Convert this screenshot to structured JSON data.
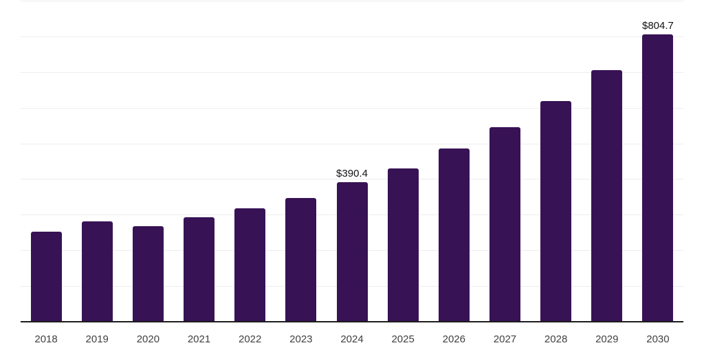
{
  "chart_data": {
    "type": "bar",
    "title": "",
    "xlabel": "",
    "ylabel": "",
    "categories": [
      "2018",
      "2019",
      "2020",
      "2021",
      "2022",
      "2023",
      "2024",
      "2025",
      "2026",
      "2027",
      "2028",
      "2029",
      "2030"
    ],
    "values": [
      252,
      281,
      268,
      292,
      318,
      347,
      390.4,
      430,
      485,
      546,
      619,
      705,
      804.7
    ],
    "data_labels": [
      "",
      "",
      "",
      "",
      "",
      "",
      "$390.4",
      "",
      "",
      "",
      "",
      "",
      "$804.7"
    ],
    "ylim": [
      0,
      900
    ],
    "gridline_step": 100,
    "grid": "horizontal-only",
    "legend": "none",
    "y_tick_labels_visible": false,
    "colors": {
      "bar": "#371254",
      "gridline": "#ededed",
      "axis_line": "#1c1c1c",
      "x_tick_label": "#404040",
      "data_label": "#111111",
      "background": "#ffffff"
    }
  }
}
